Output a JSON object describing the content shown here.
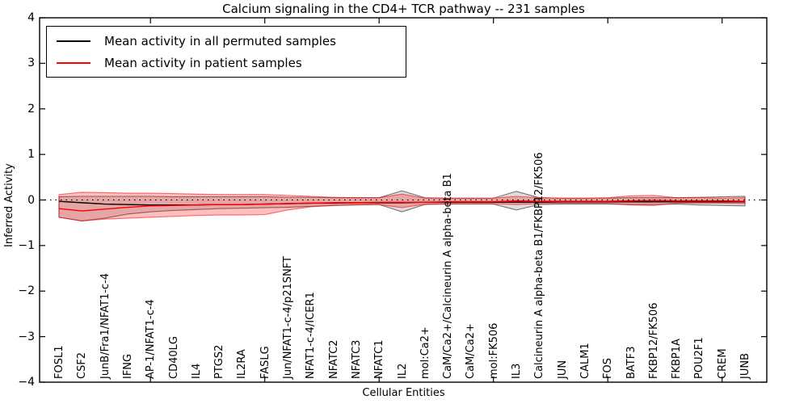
{
  "chart_data": {
    "type": "line",
    "title": "Calcium signaling in the CD4+ TCR pathway -- 231 samples",
    "xlabel": "Cellular Entities",
    "ylabel": "Inferred Activity",
    "ylim": [
      -4,
      4
    ],
    "grid": false,
    "zero_line_style": "dotted",
    "legend_position": "upper left",
    "yticks": [
      {
        "v": 4,
        "label": "4"
      },
      {
        "v": 3,
        "label": "3"
      },
      {
        "v": 2,
        "label": "2"
      },
      {
        "v": 1,
        "label": "1"
      },
      {
        "v": 0,
        "label": "0"
      },
      {
        "v": -1,
        "label": "−1"
      },
      {
        "v": -2,
        "label": "−2"
      },
      {
        "v": -3,
        "label": "−3"
      },
      {
        "v": -4,
        "label": "−4"
      }
    ],
    "x_major_tick_indices": [
      4,
      9,
      14,
      19,
      24,
      29
    ],
    "categories": [
      "FOSL1",
      "CSF2",
      "JunB/Fra1/NFAT1-c-4",
      "IFNG",
      "AP-1/NFAT1-c-4",
      "CD40LG",
      "IL4",
      "PTGS2",
      "IL2RA",
      "FASLG",
      "Jun/NFAT1-c-4/p21SNFT",
      "NFAT1-c-4/ICER1",
      "NFATC2",
      "NFATC3",
      "NFATC1",
      "IL2",
      "mol:Ca2+",
      "CaM/Ca2+/Calcineurin A alpha-beta B1",
      "CaM/Ca2+",
      "mol:FK506",
      "IL3",
      "Calcineurin A alpha-beta B1/FKBP12/FK506",
      "JUN",
      "CALM1",
      "FOS",
      "BATF3",
      "FKBP12/FK506",
      "FKBP1A",
      "POU2F1",
      "CREM",
      "JUNB"
    ],
    "series": [
      {
        "name": "Mean activity in all permuted samples",
        "color": "#000000",
        "band_fill": "rgba(0,0,0,0.13)",
        "band_edge": "rgba(0,0,0,0.5)",
        "values": [
          -0.03,
          -0.06,
          -0.09,
          -0.1,
          -0.11,
          -0.11,
          -0.11,
          -0.1,
          -0.1,
          -0.09,
          -0.08,
          -0.07,
          -0.07,
          -0.06,
          -0.06,
          -0.06,
          -0.05,
          -0.05,
          -0.05,
          -0.05,
          -0.05,
          -0.05,
          -0.04,
          -0.04,
          -0.04,
          -0.04,
          -0.04,
          -0.04,
          -0.04,
          -0.04,
          -0.04
        ],
        "band_upper": [
          0.07,
          0.08,
          0.08,
          0.08,
          0.08,
          0.07,
          0.07,
          0.07,
          0.07,
          0.07,
          0.06,
          0.06,
          0.05,
          0.05,
          0.05,
          0.2,
          0.05,
          0.04,
          0.04,
          0.04,
          0.19,
          0.05,
          0.04,
          0.04,
          0.04,
          0.05,
          0.05,
          0.05,
          0.06,
          0.07,
          0.08
        ],
        "band_lower": [
          -0.38,
          -0.46,
          -0.4,
          -0.31,
          -0.26,
          -0.23,
          -0.21,
          -0.19,
          -0.18,
          -0.17,
          -0.16,
          -0.14,
          -0.12,
          -0.11,
          -0.1,
          -0.26,
          -0.1,
          -0.09,
          -0.09,
          -0.09,
          -0.22,
          -0.1,
          -0.09,
          -0.09,
          -0.09,
          -0.1,
          -0.1,
          -0.09,
          -0.11,
          -0.12,
          -0.13
        ]
      },
      {
        "name": "Mean activity in patient samples",
        "color": "#ff0000",
        "band_fill": "rgba(255,0,0,0.25)",
        "band_edge": "rgba(255,0,0,0.55)",
        "values": [
          -0.19,
          -0.24,
          -0.2,
          -0.16,
          -0.13,
          -0.12,
          -0.11,
          -0.1,
          -0.1,
          -0.09,
          -0.08,
          -0.07,
          -0.06,
          -0.06,
          -0.05,
          -0.05,
          -0.05,
          -0.04,
          -0.04,
          -0.04,
          -0.02,
          -0.03,
          -0.03,
          -0.03,
          -0.03,
          -0.02,
          -0.01,
          -0.02,
          -0.02,
          -0.02,
          -0.03
        ],
        "band_upper": [
          0.12,
          0.17,
          0.16,
          0.15,
          0.15,
          0.14,
          0.13,
          0.12,
          0.12,
          0.12,
          0.1,
          0.08,
          0.06,
          0.05,
          0.05,
          0.13,
          0.04,
          0.04,
          0.04,
          0.04,
          0.08,
          0.05,
          0.04,
          0.04,
          0.05,
          0.09,
          0.1,
          0.05,
          0.05,
          0.04,
          0.05
        ],
        "band_lower": [
          -0.38,
          -0.46,
          -0.42,
          -0.4,
          -0.38,
          -0.36,
          -0.34,
          -0.33,
          -0.33,
          -0.32,
          -0.22,
          -0.15,
          -0.12,
          -0.1,
          -0.1,
          -0.17,
          -0.09,
          -0.08,
          -0.08,
          -0.08,
          -0.1,
          -0.08,
          -0.07,
          -0.07,
          -0.07,
          -0.11,
          -0.12,
          -0.07,
          -0.07,
          -0.07,
          -0.08
        ]
      }
    ]
  }
}
